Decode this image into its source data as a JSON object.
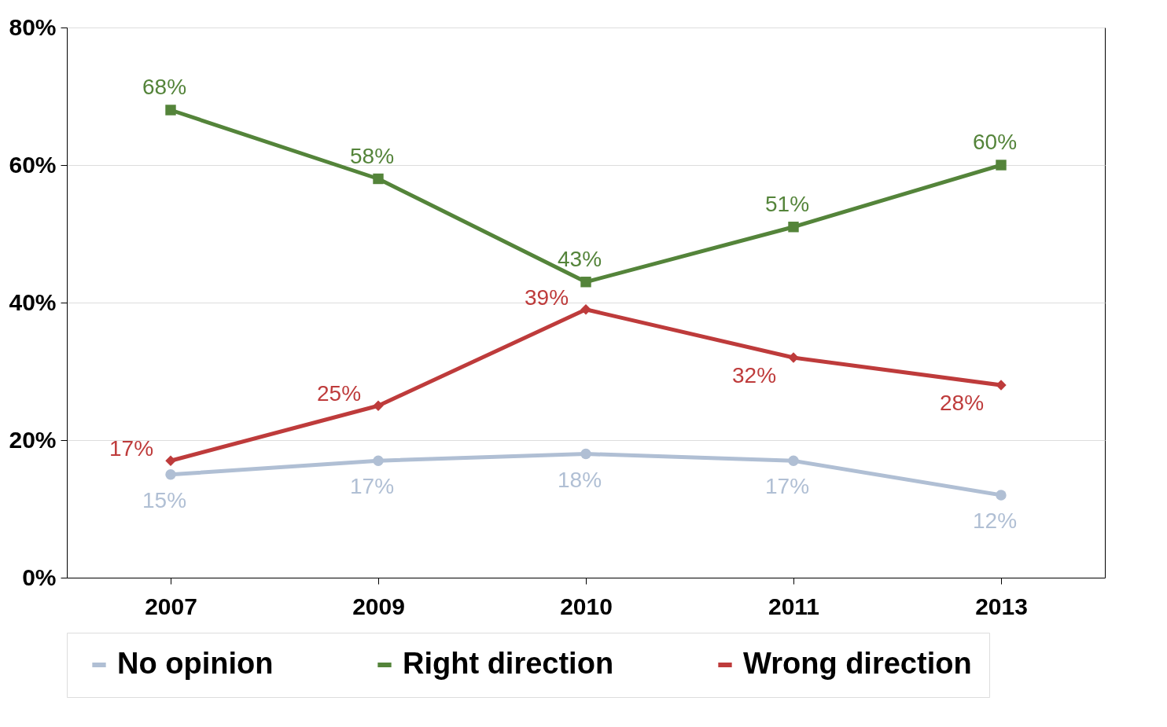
{
  "chart_data": {
    "type": "line",
    "categories": [
      "2007",
      "2009",
      "2010",
      "2011",
      "2013"
    ],
    "series": [
      {
        "name": "No opinion",
        "color": "#b0bfd4",
        "marker": "circle",
        "values": [
          15,
          17,
          18,
          17,
          12
        ],
        "value_labels": [
          "15%",
          "17%",
          "18%",
          "17%",
          "12%"
        ]
      },
      {
        "name": "Right direction",
        "color": "#54843a",
        "marker": "square",
        "values": [
          68,
          58,
          43,
          51,
          60
        ],
        "value_labels": [
          "68%",
          "58%",
          "43%",
          "51%",
          "60%"
        ]
      },
      {
        "name": "Wrong direction",
        "color": "#be3b3b",
        "marker": "diamond",
        "values": [
          17,
          25,
          39,
          32,
          28
        ],
        "value_labels": [
          "17%",
          "25%",
          "39%",
          "32%",
          "28%"
        ]
      }
    ],
    "ylim": [
      0,
      80
    ],
    "yticks": [
      {
        "value": 0,
        "label": "0%"
      },
      {
        "value": 20,
        "label": "20%"
      },
      {
        "value": 40,
        "label": "40%"
      },
      {
        "value": 60,
        "label": "60%"
      },
      {
        "value": 80,
        "label": "80%"
      }
    ],
    "grid": "y",
    "legend": "bottom"
  }
}
